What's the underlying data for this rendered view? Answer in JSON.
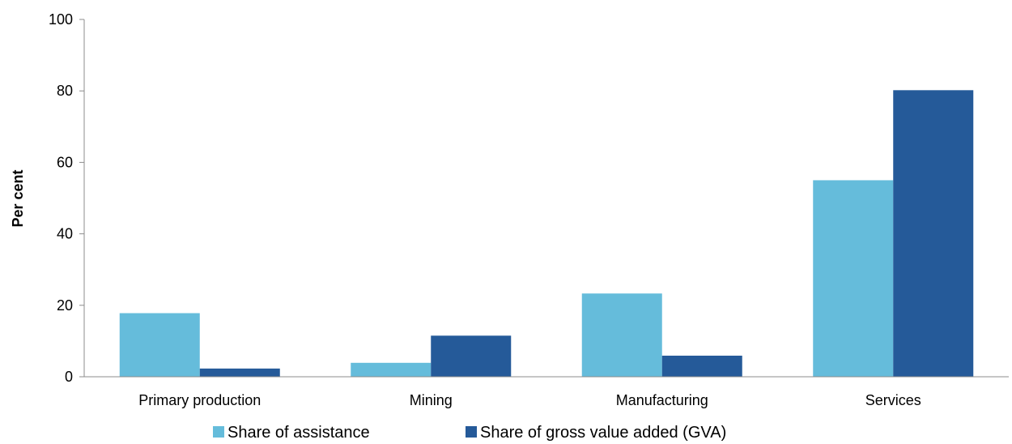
{
  "chart_data": {
    "type": "bar",
    "categories": [
      "Primary production",
      "Mining",
      "Manufacturing",
      "Services"
    ],
    "series": [
      {
        "name": "Share of assistance",
        "values": [
          17.8,
          3.9,
          23.3,
          55.0
        ],
        "color": "#65BCDB"
      },
      {
        "name": "Share of gross value added (GVA)",
        "values": [
          2.3,
          11.5,
          5.9,
          80.2
        ],
        "color": "#255A99"
      }
    ],
    "title": "",
    "xlabel": "",
    "ylabel": "Per cent",
    "ylim": [
      0,
      100
    ],
    "yticks": [
      0,
      20,
      40,
      60,
      80,
      100
    ],
    "grid": false,
    "legend": "bottom"
  }
}
